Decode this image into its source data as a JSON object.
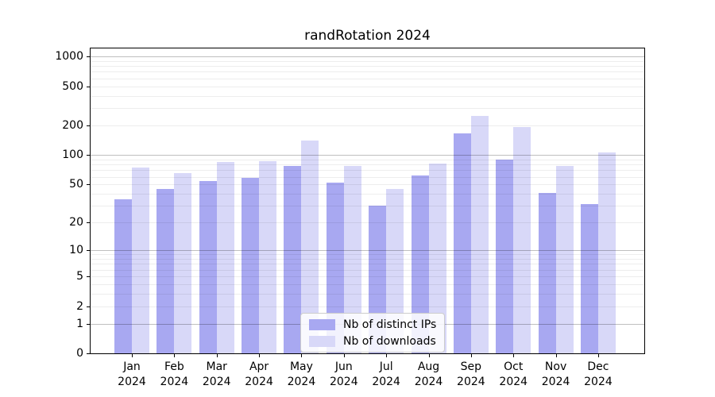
{
  "title": "randRotation 2024",
  "chart_data": {
    "type": "bar",
    "title": "randRotation 2024",
    "categories": [
      "Jan",
      "Feb",
      "Mar",
      "Apr",
      "May",
      "Jun",
      "Jul",
      "Aug",
      "Sep",
      "Oct",
      "Nov",
      "Dec"
    ],
    "x_tick_second_line": "2024",
    "series": [
      {
        "name": "Nb of distinct IPs",
        "color": "#a8a8f1",
        "values": [
          35,
          45,
          54,
          58,
          78,
          52,
          30,
          62,
          165,
          89,
          41,
          31
        ]
      },
      {
        "name": "Nb of downloads",
        "color": "#d8d8f8",
        "values": [
          75,
          65,
          85,
          86,
          140,
          77,
          45,
          81,
          250,
          193,
          78,
          107
        ]
      }
    ],
    "y_scale": "log1p",
    "y_ticks": [
      0,
      1,
      2,
      5,
      10,
      20,
      50,
      100,
      200,
      500,
      1000
    ],
    "y_major_gridlines": [
      1,
      10,
      100,
      1000
    ],
    "ylim": [
      0,
      1230
    ],
    "grid": "major+minor horizontal",
    "legend_position": "lower-center",
    "background": "#ffffff",
    "spine_color": "#000000"
  }
}
